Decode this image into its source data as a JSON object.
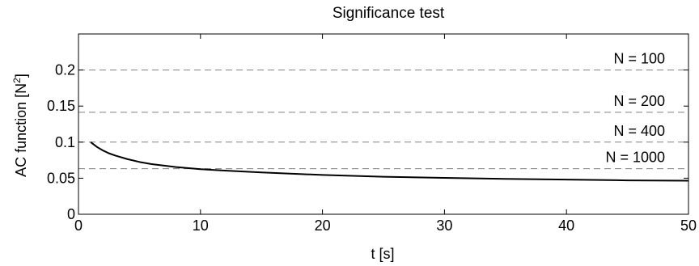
{
  "chart_data": {
    "type": "line",
    "title": "Significance test",
    "xlabel": "t [s]",
    "ylabel_base": "AC function [N",
    "ylabel_sup": "2",
    "ylabel_end": "]",
    "xlim": [
      0,
      50
    ],
    "ylim": [
      0,
      0.25
    ],
    "x_ticks": [
      0,
      10,
      20,
      30,
      40,
      50
    ],
    "x_tick_labels": [
      "0",
      "10",
      "20",
      "30",
      "40",
      "50"
    ],
    "y_ticks": [
      0,
      0.05,
      0.1,
      0.15,
      0.2
    ],
    "y_tick_labels": [
      "0",
      "0.05",
      "0.1",
      "0.15",
      "0.2"
    ],
    "grid": false,
    "series": [
      {
        "color": "#000000",
        "line_style": "solid",
        "x": [
          1,
          1.5,
          2,
          2.5,
          3,
          4,
          5,
          6,
          8,
          10,
          12,
          15,
          20,
          25,
          30,
          35,
          40,
          45,
          50
        ],
        "y": [
          0.1,
          0.0935,
          0.0885,
          0.0845,
          0.0815,
          0.0765,
          0.0725,
          0.0695,
          0.0655,
          0.0625,
          0.0605,
          0.058,
          0.0545,
          0.052,
          0.0505,
          0.049,
          0.048,
          0.047,
          0.0465
        ]
      }
    ],
    "thresholds": [
      {
        "label": "N = 100",
        "value": 0.2
      },
      {
        "label": "N = 200",
        "value": 0.1414
      },
      {
        "label": "N = 400",
        "value": 0.1
      },
      {
        "label": "N = 1000",
        "value": 0.0632
      }
    ],
    "threshold_color": "#808080",
    "threshold_style": "dashed"
  }
}
